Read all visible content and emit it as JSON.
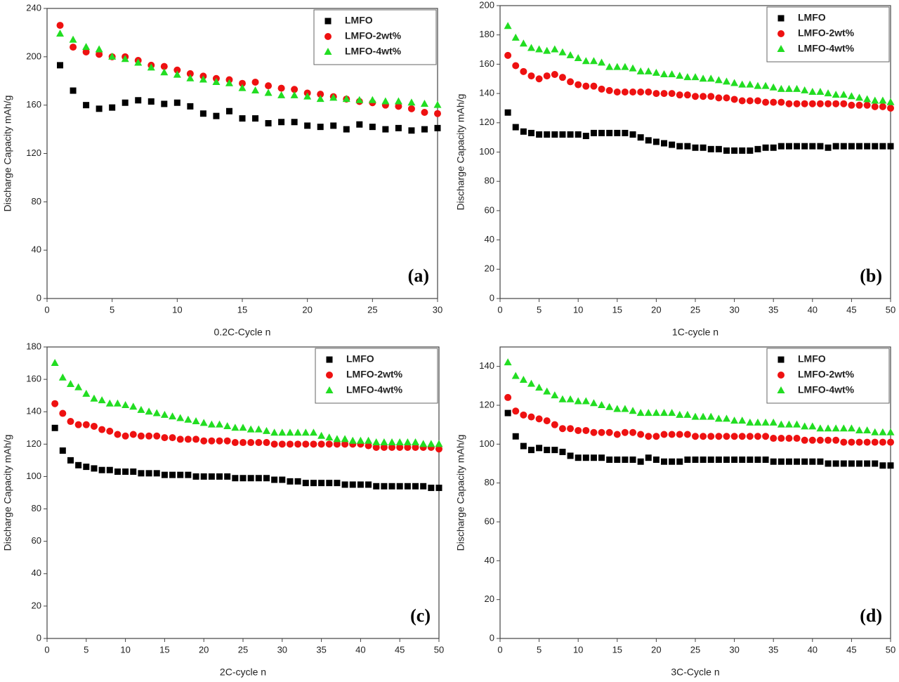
{
  "chart_data": [
    {
      "type": "scatter",
      "panel_label": "(a)",
      "x_label": "0.2C-Cycle n",
      "y_label": "Discharge Capacity mAh/g",
      "x": [
        1,
        2,
        3,
        4,
        5,
        6,
        7,
        8,
        9,
        10,
        11,
        12,
        13,
        14,
        15,
        16,
        17,
        18,
        19,
        20,
        21,
        22,
        23,
        24,
        25,
        26,
        27,
        28,
        29,
        30
      ],
      "xlim": [
        0,
        30
      ],
      "xticks": [
        0,
        5,
        10,
        15,
        20,
        25,
        30
      ],
      "ylim": [
        0,
        240
      ],
      "yticks": [
        0,
        40,
        80,
        120,
        160,
        200,
        240
      ],
      "series": [
        {
          "name": "LMFO",
          "color": "#000000",
          "marker": "square",
          "values": [
            193,
            172,
            160,
            157,
            158,
            162,
            164,
            163,
            161,
            162,
            159,
            153,
            151,
            155,
            149,
            149,
            145,
            146,
            146,
            143,
            142,
            143,
            140,
            144,
            142,
            140,
            141,
            139,
            140,
            141
          ]
        },
        {
          "name": "LMFO-2wt%",
          "color": "#ee1111",
          "marker": "circle",
          "values": [
            226,
            208,
            204,
            202,
            200,
            200,
            197,
            193,
            192,
            189,
            186,
            184,
            182,
            181,
            178,
            179,
            176,
            174,
            173,
            170,
            169,
            167,
            165,
            163,
            162,
            160,
            159,
            157,
            154,
            153
          ]
        },
        {
          "name": "LMFO-4wt%",
          "color": "#22dd22",
          "marker": "triangle",
          "values": [
            219,
            214,
            208,
            206,
            200,
            198,
            195,
            191,
            187,
            185,
            182,
            181,
            179,
            178,
            174,
            172,
            170,
            168,
            168,
            167,
            165,
            166,
            165,
            164,
            164,
            163,
            163,
            162,
            161,
            160
          ]
        }
      ]
    },
    {
      "type": "scatter",
      "panel_label": "(b)",
      "x_label": "1C-cycle n",
      "y_label": "Discharge Capacity mAh/g",
      "x": [
        1,
        2,
        3,
        4,
        5,
        6,
        7,
        8,
        9,
        10,
        11,
        12,
        13,
        14,
        15,
        16,
        17,
        18,
        19,
        20,
        21,
        22,
        23,
        24,
        25,
        26,
        27,
        28,
        29,
        30,
        31,
        32,
        33,
        34,
        35,
        36,
        37,
        38,
        39,
        40,
        41,
        42,
        43,
        44,
        45,
        46,
        47,
        48,
        49,
        50
      ],
      "xlim": [
        0,
        50
      ],
      "xticks": [
        0,
        5,
        10,
        15,
        20,
        25,
        30,
        35,
        40,
        45,
        50
      ],
      "ylim": [
        0,
        200
      ],
      "yticks": [
        0,
        20,
        40,
        60,
        80,
        100,
        120,
        140,
        160,
        180,
        200
      ],
      "series": [
        {
          "name": "LMFO",
          "color": "#000000",
          "marker": "square",
          "values": [
            127,
            117,
            114,
            113,
            112,
            112,
            112,
            112,
            112,
            112,
            111,
            113,
            113,
            113,
            113,
            113,
            112,
            110,
            108,
            107,
            106,
            105,
            104,
            104,
            103,
            103,
            102,
            102,
            101,
            101,
            101,
            101,
            102,
            103,
            103,
            104,
            104,
            104,
            104,
            104,
            104,
            103,
            104,
            104,
            104,
            104,
            104,
            104,
            104,
            104
          ]
        },
        {
          "name": "LMFO-2wt%",
          "color": "#ee1111",
          "marker": "circle",
          "values": [
            166,
            159,
            155,
            152,
            150,
            152,
            153,
            151,
            148,
            146,
            145,
            145,
            143,
            142,
            141,
            141,
            141,
            141,
            141,
            140,
            140,
            140,
            139,
            139,
            138,
            138,
            138,
            137,
            137,
            136,
            135,
            135,
            135,
            134,
            134,
            134,
            133,
            133,
            133,
            133,
            133,
            133,
            133,
            133,
            132,
            132,
            132,
            131,
            131,
            130
          ]
        },
        {
          "name": "LMFO-4wt%",
          "color": "#22dd22",
          "marker": "triangle",
          "values": [
            186,
            178,
            174,
            171,
            170,
            169,
            170,
            168,
            166,
            164,
            162,
            162,
            161,
            158,
            158,
            158,
            157,
            155,
            155,
            154,
            153,
            153,
            152,
            151,
            151,
            150,
            150,
            149,
            148,
            147,
            146,
            146,
            145,
            145,
            144,
            143,
            143,
            143,
            142,
            141,
            141,
            140,
            139,
            139,
            138,
            137,
            136,
            135,
            135,
            134
          ]
        }
      ]
    },
    {
      "type": "scatter",
      "panel_label": "(c)",
      "x_label": "2C-cycle n",
      "y_label": "Discharge Capacity mAh/g",
      "x": [
        1,
        2,
        3,
        4,
        5,
        6,
        7,
        8,
        9,
        10,
        11,
        12,
        13,
        14,
        15,
        16,
        17,
        18,
        19,
        20,
        21,
        22,
        23,
        24,
        25,
        26,
        27,
        28,
        29,
        30,
        31,
        32,
        33,
        34,
        35,
        36,
        37,
        38,
        39,
        40,
        41,
        42,
        43,
        44,
        45,
        46,
        47,
        48,
        49,
        50
      ],
      "xlim": [
        0,
        50
      ],
      "xticks": [
        0,
        5,
        10,
        15,
        20,
        25,
        30,
        35,
        40,
        45,
        50
      ],
      "ylim": [
        0,
        180
      ],
      "yticks": [
        0,
        20,
        40,
        60,
        80,
        100,
        120,
        140,
        160,
        180
      ],
      "series": [
        {
          "name": "LMFO",
          "color": "#000000",
          "marker": "square",
          "values": [
            130,
            116,
            110,
            107,
            106,
            105,
            104,
            104,
            103,
            103,
            103,
            102,
            102,
            102,
            101,
            101,
            101,
            101,
            100,
            100,
            100,
            100,
            100,
            99,
            99,
            99,
            99,
            99,
            98,
            98,
            97,
            97,
            96,
            96,
            96,
            96,
            96,
            95,
            95,
            95,
            95,
            94,
            94,
            94,
            94,
            94,
            94,
            94,
            93,
            93
          ]
        },
        {
          "name": "LMFO-2wt%",
          "color": "#ee1111",
          "marker": "circle",
          "values": [
            145,
            139,
            134,
            132,
            132,
            131,
            129,
            128,
            126,
            125,
            126,
            125,
            125,
            125,
            124,
            124,
            123,
            123,
            123,
            122,
            122,
            122,
            122,
            121,
            121,
            121,
            121,
            121,
            120,
            120,
            120,
            120,
            120,
            120,
            120,
            120,
            120,
            120,
            120,
            120,
            119,
            118,
            118,
            118,
            118,
            118,
            118,
            118,
            118,
            117
          ]
        },
        {
          "name": "LMFO-4wt%",
          "color": "#22dd22",
          "marker": "triangle",
          "values": [
            170,
            161,
            157,
            155,
            151,
            148,
            147,
            145,
            145,
            144,
            143,
            141,
            140,
            139,
            138,
            137,
            136,
            135,
            134,
            133,
            132,
            132,
            131,
            130,
            130,
            129,
            129,
            128,
            127,
            127,
            127,
            127,
            127,
            127,
            125,
            124,
            123,
            123,
            122,
            122,
            122,
            121,
            121,
            121,
            121,
            121,
            121,
            120,
            120,
            120
          ]
        }
      ]
    },
    {
      "type": "scatter",
      "panel_label": "(d)",
      "x_label": "3C-Cycle n",
      "y_label": "Discharge Capacity mAh/g",
      "x": [
        1,
        2,
        3,
        4,
        5,
        6,
        7,
        8,
        9,
        10,
        11,
        12,
        13,
        14,
        15,
        16,
        17,
        18,
        19,
        20,
        21,
        22,
        23,
        24,
        25,
        26,
        27,
        28,
        29,
        30,
        31,
        32,
        33,
        34,
        35,
        36,
        37,
        38,
        39,
        40,
        41,
        42,
        43,
        44,
        45,
        46,
        47,
        48,
        49,
        50
      ],
      "xlim": [
        0,
        50
      ],
      "xticks": [
        0,
        5,
        10,
        15,
        20,
        25,
        30,
        35,
        40,
        45,
        50
      ],
      "ylim": [
        0,
        150
      ],
      "yticks": [
        0,
        20,
        40,
        60,
        80,
        100,
        120,
        140
      ],
      "series": [
        {
          "name": "LMFO",
          "color": "#000000",
          "marker": "square",
          "values": [
            116,
            104,
            99,
            97,
            98,
            97,
            97,
            96,
            94,
            93,
            93,
            93,
            93,
            92,
            92,
            92,
            92,
            91,
            93,
            92,
            91,
            91,
            91,
            92,
            92,
            92,
            92,
            92,
            92,
            92,
            92,
            92,
            92,
            92,
            91,
            91,
            91,
            91,
            91,
            91,
            91,
            90,
            90,
            90,
            90,
            90,
            90,
            90,
            89,
            89
          ]
        },
        {
          "name": "LMFO-2wt%",
          "color": "#ee1111",
          "marker": "circle",
          "values": [
            124,
            117,
            115,
            114,
            113,
            112,
            110,
            108,
            108,
            107,
            107,
            106,
            106,
            106,
            105,
            106,
            106,
            105,
            104,
            104,
            105,
            105,
            105,
            105,
            104,
            104,
            104,
            104,
            104,
            104,
            104,
            104,
            104,
            104,
            103,
            103,
            103,
            103,
            102,
            102,
            102,
            102,
            102,
            101,
            101,
            101,
            101,
            101,
            101,
            101
          ]
        },
        {
          "name": "LMFO-4wt%",
          "color": "#22dd22",
          "marker": "triangle",
          "values": [
            142,
            135,
            133,
            131,
            129,
            127,
            125,
            123,
            123,
            122,
            122,
            121,
            120,
            119,
            118,
            118,
            117,
            116,
            116,
            116,
            116,
            116,
            115,
            115,
            114,
            114,
            114,
            113,
            113,
            112,
            112,
            111,
            111,
            111,
            111,
            110,
            110,
            110,
            109,
            109,
            108,
            108,
            108,
            108,
            108,
            107,
            107,
            106,
            106,
            106
          ]
        }
      ]
    }
  ]
}
